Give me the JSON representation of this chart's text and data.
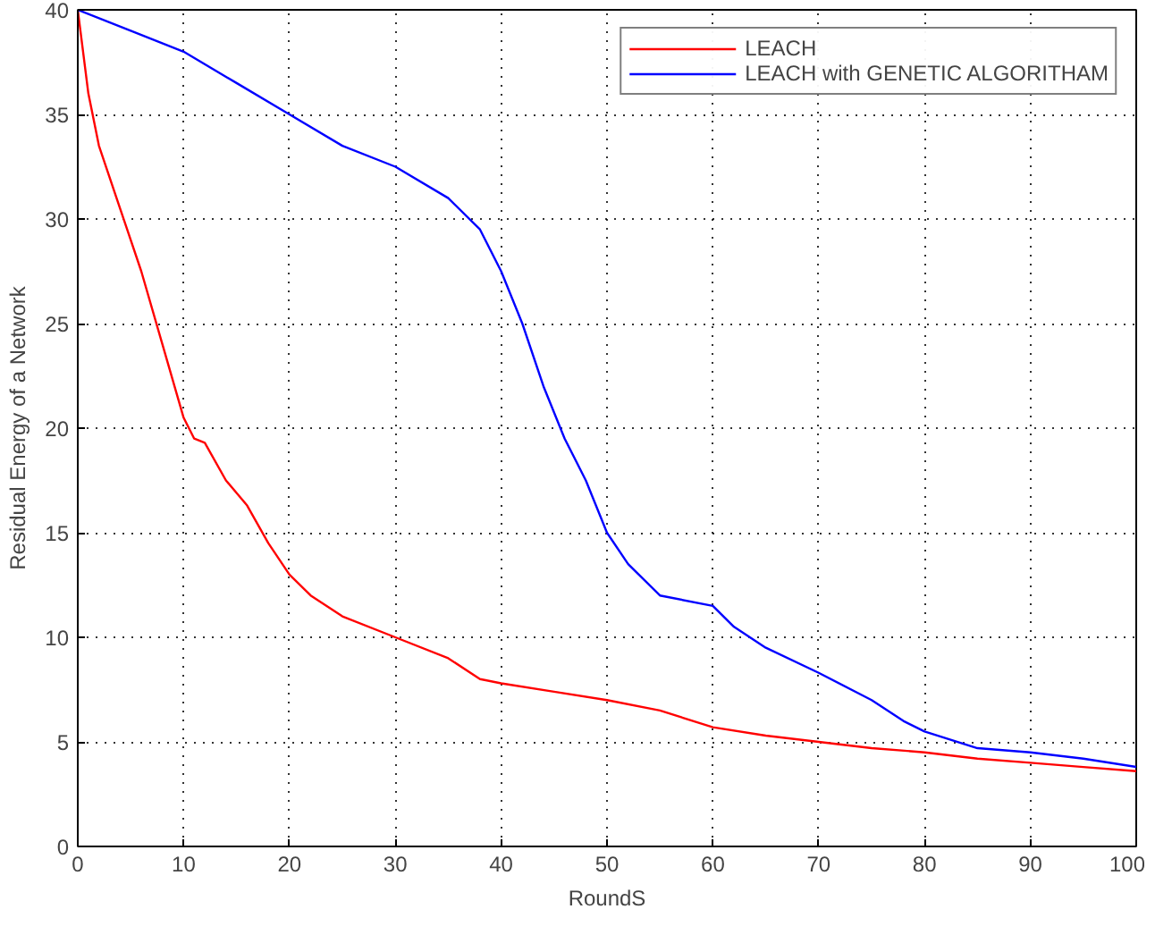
{
  "chart_data": {
    "type": "line",
    "xlabel": "RoundS",
    "ylabel": "Residual Energy of a Network",
    "xlim": [
      0,
      100
    ],
    "ylim": [
      0,
      40
    ],
    "xticks": [
      0,
      10,
      20,
      30,
      40,
      50,
      60,
      70,
      80,
      90,
      100
    ],
    "yticks": [
      0,
      5,
      10,
      15,
      20,
      25,
      30,
      35,
      40
    ],
    "grid": true,
    "legend": "top right",
    "line_style": "solid",
    "series": [
      {
        "name": "LEACH",
        "color": "#ff0000",
        "x": [
          0,
          1,
          2,
          4,
          6,
          8,
          10,
          11,
          12,
          14,
          16,
          18,
          20,
          22,
          25,
          30,
          35,
          38,
          40,
          45,
          50,
          55,
          60,
          65,
          70,
          75,
          80,
          85,
          90,
          95,
          100
        ],
        "values": [
          40,
          36,
          33.5,
          30.5,
          27.5,
          24,
          20.5,
          19.5,
          19.3,
          17.5,
          16.3,
          14.5,
          13,
          12,
          11,
          10,
          9,
          8,
          7.8,
          7.4,
          7,
          6.5,
          5.7,
          5.3,
          5,
          4.7,
          4.5,
          4.2,
          4,
          3.8,
          3.6
        ]
      },
      {
        "name": "LEACH with GENETIC ALGORITHAM",
        "color": "#0000ff",
        "x": [
          0,
          5,
          10,
          15,
          20,
          25,
          30,
          35,
          38,
          40,
          42,
          44,
          46,
          48,
          50,
          52,
          55,
          60,
          62,
          65,
          70,
          75,
          78,
          80,
          85,
          90,
          95,
          100
        ],
        "values": [
          40,
          39,
          38,
          36.5,
          35,
          33.5,
          32.5,
          31,
          29.5,
          27.5,
          25,
          22,
          19.5,
          17.5,
          15,
          13.5,
          12,
          11.5,
          10.5,
          9.5,
          8.3,
          7,
          6,
          5.5,
          4.7,
          4.5,
          4.2,
          3.8
        ]
      }
    ]
  }
}
